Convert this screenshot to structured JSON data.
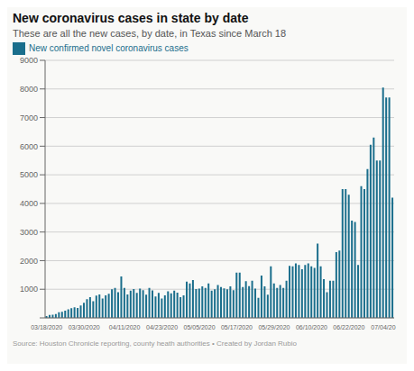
{
  "chart_data": {
    "type": "bar",
    "title": "New coronavirus cases in state by date",
    "subtitle": "These are all the new cases, by date, in Texas since March 18",
    "annotations": [
      "Source: Houston Chronicle reporting, county heath authorities • Created by Jordan Rubio"
    ],
    "categories": [
      "03/18/2020",
      null,
      null,
      null,
      null,
      null,
      null,
      null,
      null,
      null,
      null,
      null,
      "03/30/2020",
      null,
      null,
      null,
      null,
      null,
      null,
      null,
      null,
      null,
      null,
      null,
      null,
      "04/11/2020",
      null,
      null,
      null,
      null,
      null,
      null,
      null,
      null,
      null,
      null,
      null,
      "04/23/2020",
      null,
      null,
      null,
      null,
      null,
      null,
      null,
      null,
      null,
      null,
      null,
      "05/05/2020",
      null,
      null,
      null,
      null,
      null,
      null,
      null,
      null,
      null,
      null,
      null,
      "05/17/2020",
      null,
      null,
      null,
      null,
      null,
      null,
      null,
      null,
      null,
      null,
      null,
      "05/29/2020",
      null,
      null,
      null,
      null,
      null,
      null,
      null,
      null,
      null,
      null,
      null,
      "06/10/2020",
      null,
      null,
      null,
      null,
      null,
      null,
      null,
      null,
      null,
      null,
      null,
      "06/22/2020",
      null,
      null,
      null,
      null,
      null,
      null,
      null,
      null,
      null,
      null,
      "07/04/20",
      null,
      null,
      null
    ],
    "series": [
      {
        "name": "New confirmed novel coronavirus cases",
        "color": "#1a6e8c",
        "values": [
          60,
          100,
          110,
          130,
          200,
          210,
          250,
          300,
          340,
          370,
          350,
          430,
          530,
          650,
          720,
          580,
          780,
          820,
          680,
          790,
          840,
          1000,
          1050,
          900,
          1450,
          1050,
          820,
          950,
          1010,
          870,
          1020,
          970,
          810,
          1050,
          960,
          750,
          870,
          680,
          790,
          930,
          860,
          950,
          880,
          720,
          790,
          1270,
          1200,
          1320,
          1010,
          1020,
          1100,
          1050,
          1200,
          950,
          1000,
          1150,
          1080,
          1030,
          1000,
          1100,
          970,
          1580,
          1580,
          1080,
          1280,
          1110,
          1300,
          1020,
          700,
          1480,
          1100,
          810,
          1800,
          1200,
          1050,
          1150,
          1050,
          1300,
          1820,
          1800,
          1900,
          1850,
          1700,
          1850,
          1900,
          1800,
          1750,
          2600,
          1800,
          1350,
          900,
          1300,
          1300,
          2300,
          2350,
          4500,
          4500,
          4300,
          3400,
          3350,
          1850,
          4600,
          4500,
          5200,
          6050,
          6300,
          5500,
          5500,
          8050,
          7700,
          7700,
          4200
        ]
      }
    ],
    "ylim": [
      0,
      9000
    ],
    "yticks": [
      {
        "value": 0,
        "label": ""
      },
      1000,
      2000,
      3000,
      4000,
      5000,
      6000,
      7000,
      8000,
      9000
    ],
    "grid": true
  }
}
